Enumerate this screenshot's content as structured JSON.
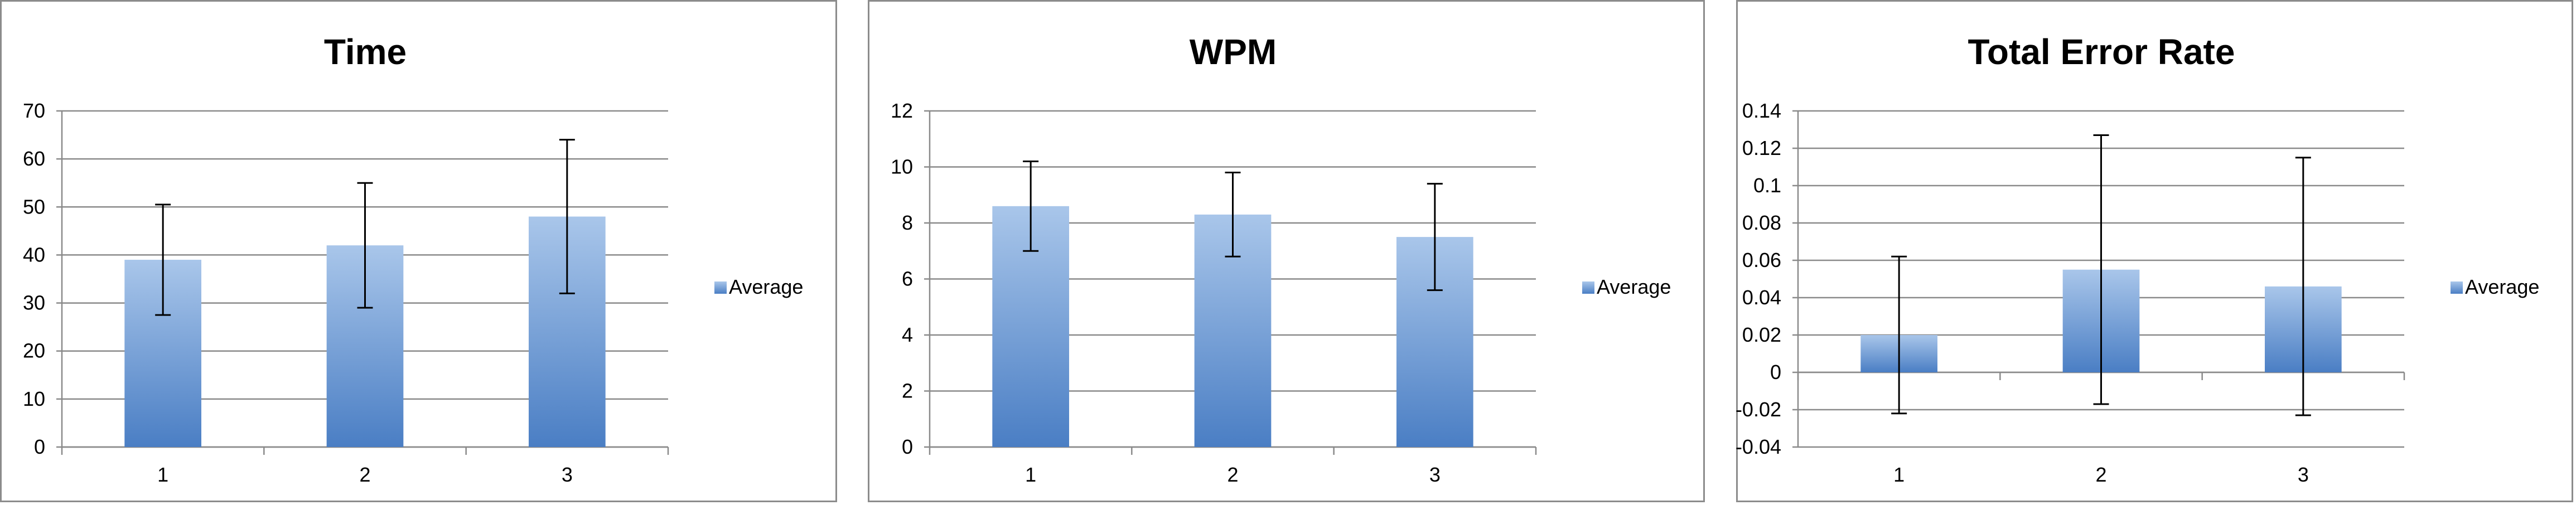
{
  "chart_data": [
    {
      "type": "bar",
      "title": "Time",
      "categories": [
        "1",
        "2",
        "3"
      ],
      "series": [
        {
          "name": "Average",
          "values": [
            39,
            42,
            48
          ],
          "error": [
            11.5,
            13,
            16
          ]
        }
      ],
      "ylim": [
        0,
        70
      ],
      "yticks": [
        "0",
        "10",
        "20",
        "30",
        "40",
        "50",
        "60",
        "70"
      ],
      "ytick_values": [
        0,
        10,
        20,
        30,
        40,
        50,
        60,
        70
      ],
      "grid": true,
      "legend": "right",
      "bar_color": "#4a7ec4",
      "bar_color_light": "#a9c6ea"
    },
    {
      "type": "bar",
      "title": "WPM",
      "categories": [
        "1",
        "2",
        "3"
      ],
      "series": [
        {
          "name": "Average",
          "values": [
            8.6,
            8.3,
            7.5
          ],
          "error": [
            1.6,
            1.5,
            1.9
          ]
        }
      ],
      "ylim": [
        0,
        12
      ],
      "yticks": [
        "0",
        "2",
        "4",
        "6",
        "8",
        "10",
        "12"
      ],
      "ytick_values": [
        0,
        2,
        4,
        6,
        8,
        10,
        12
      ],
      "grid": true,
      "legend": "right",
      "bar_color": "#4a7ec4",
      "bar_color_light": "#a9c6ea"
    },
    {
      "type": "bar",
      "title": "Total Error Rate",
      "categories": [
        "1",
        "2",
        "3"
      ],
      "series": [
        {
          "name": "Average",
          "values": [
            0.02,
            0.055,
            0.046
          ],
          "error": [
            0.042,
            0.072,
            0.069
          ]
        }
      ],
      "ylim": [
        -0.04,
        0.14
      ],
      "yticks": [
        "-0.04",
        "-0.02",
        "0",
        "0.02",
        "0.04",
        "0.06",
        "0.08",
        "0.1",
        "0.12",
        "0.14"
      ],
      "ytick_values": [
        -0.04,
        -0.02,
        0,
        0.02,
        0.04,
        0.06,
        0.08,
        0.1,
        0.12,
        0.14
      ],
      "grid": true,
      "legend": "right",
      "bar_color": "#4a7ec4",
      "bar_color_light": "#a9c6ea"
    }
  ]
}
